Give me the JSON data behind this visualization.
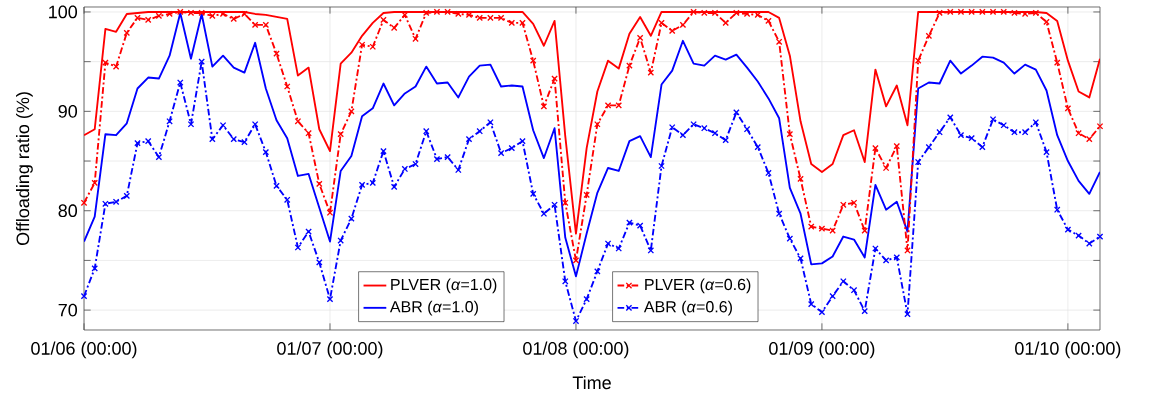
{
  "chart_data": {
    "type": "line",
    "xlabel": "Time",
    "ylabel": "Offloading ratio (%)",
    "categories": [
      "01/06 (00:00)",
      null,
      null,
      null,
      null,
      null,
      null,
      null,
      null,
      null,
      null,
      null,
      null,
      null,
      null,
      null,
      null,
      null,
      null,
      null,
      null,
      null,
      null,
      "01/07 (00:00)",
      null,
      null,
      null,
      null,
      null,
      null,
      null,
      null,
      null,
      null,
      null,
      null,
      null,
      null,
      null,
      null,
      null,
      null,
      null,
      null,
      null,
      null,
      "01/08 (00:00)",
      null,
      null,
      null,
      null,
      null,
      null,
      null,
      null,
      null,
      null,
      null,
      null,
      null,
      null,
      null,
      null,
      null,
      null,
      null,
      null,
      null,
      null,
      "01/09 (00:00)",
      null,
      null,
      null,
      null,
      null,
      null,
      null,
      null,
      null,
      null,
      null,
      null,
      null,
      null,
      null,
      null,
      null,
      null,
      null,
      null,
      null,
      null,
      "01/10 (00:00)",
      null,
      null,
      null
    ],
    "ylim": [
      68,
      100.5
    ],
    "yticks": [
      70,
      {
        "value": 75,
        "label": null
      },
      80,
      {
        "value": 85,
        "label": null
      },
      90,
      {
        "value": 95,
        "label": null
      },
      100
    ],
    "grid": true,
    "legend": "bottom",
    "series": [
      {
        "name": "PLVER (*α*=1.0)",
        "color": "#ff0000",
        "line_style": "solid",
        "marker": "none",
        "values": [
          87.6,
          88.2,
          98.3,
          98.0,
          99.8,
          99.9,
          100,
          100,
          100,
          100,
          100,
          100,
          100,
          100,
          100,
          100,
          99.8,
          99.7,
          99.5,
          99.3,
          93.6,
          94.4,
          88.2,
          86.0,
          94.8,
          95.9,
          97.6,
          98.9,
          99.9,
          100,
          100,
          100,
          100,
          100,
          100,
          100,
          100,
          100,
          100,
          100,
          100,
          100,
          98.8,
          96.6,
          99.1,
          87.5,
          77.7,
          86.3,
          92.0,
          95.1,
          94.3,
          97.8,
          99.5,
          97.6,
          100,
          100,
          100,
          100,
          100,
          100,
          100,
          100,
          100,
          100,
          100,
          99.4,
          95.6,
          89.0,
          84.7,
          83.9,
          84.7,
          87.6,
          88.1,
          84.9,
          94.2,
          90.5,
          92.6,
          88.6,
          100,
          100,
          100,
          100,
          100,
          100,
          100,
          100,
          100,
          100,
          100,
          100,
          99.9,
          99.1,
          95.1,
          92.0,
          91.4,
          95.3
        ]
      },
      {
        "name": "ABR (*α*=1.0)",
        "color": "#0000ff",
        "line_style": "solid",
        "marker": "none",
        "values": [
          76.9,
          79.4,
          87.7,
          87.6,
          88.8,
          92.3,
          93.4,
          93.3,
          95.6,
          99.9,
          95.3,
          99.8,
          94.5,
          95.6,
          94.4,
          93.9,
          96.9,
          92.3,
          89.1,
          87.3,
          83.5,
          83.7,
          80.3,
          76.9,
          84.0,
          85.5,
          89.5,
          90.3,
          92.8,
          90.6,
          91.8,
          92.5,
          94.5,
          92.8,
          92.9,
          91.4,
          93.5,
          94.6,
          94.7,
          92.5,
          92.6,
          92.5,
          88.1,
          85.3,
          88.3,
          77.3,
          73.4,
          77.7,
          81.8,
          84.3,
          84.0,
          87.0,
          87.5,
          85.4,
          92.7,
          94.1,
          97.1,
          94.8,
          94.6,
          95.6,
          95.2,
          95.7,
          94.4,
          93.0,
          91.3,
          89.3,
          82.3,
          79.7,
          74.6,
          74.7,
          75.4,
          77.4,
          77.1,
          75.3,
          82.6,
          80.1,
          80.9,
          77.9,
          92.3,
          92.9,
          92.8,
          95.1,
          93.8,
          94.6,
          95.5,
          95.4,
          94.9,
          93.8,
          94.7,
          94.2,
          92.1,
          87.6,
          85.0,
          83.0,
          81.7,
          83.9
        ]
      },
      {
        "name": "PLVER (*α*=0.6)",
        "color": "#ff0000",
        "line_style": "dashed",
        "marker": "cross",
        "values": [
          80.8,
          82.8,
          94.9,
          94.5,
          97.9,
          99.4,
          99.2,
          99.6,
          99.8,
          100,
          99.9,
          99.9,
          99.6,
          99.8,
          99.3,
          99.8,
          98.7,
          98.7,
          95.8,
          92.5,
          89.0,
          87.8,
          82.7,
          79.8,
          87.7,
          90.0,
          96.7,
          96.5,
          99.2,
          98.4,
          99.7,
          97.3,
          99.9,
          100,
          100,
          99.8,
          99.7,
          99.4,
          99.4,
          99.4,
          98.9,
          98.9,
          95.1,
          90.5,
          93.3,
          80.8,
          75.0,
          81.6,
          88.7,
          90.6,
          90.6,
          94.6,
          97.4,
          93.9,
          98.9,
          98.1,
          98.7,
          100,
          99.9,
          99.9,
          98.9,
          99.9,
          99.8,
          99.7,
          99.1,
          97.0,
          87.7,
          83.2,
          78.4,
          78.2,
          78.0,
          80.6,
          80.8,
          78.0,
          86.3,
          84.3,
          86.5,
          76.0,
          95.1,
          97.6,
          99.9,
          100,
          100,
          100,
          100,
          100,
          100,
          99.9,
          99.8,
          99.9,
          99.0,
          94.9,
          90.3,
          87.8,
          87.2,
          88.5
        ]
      },
      {
        "name": "ABR (*α*=0.6)",
        "color": "#0000ff",
        "line_style": "dashed",
        "marker": "cross",
        "values": [
          71.4,
          74.2,
          80.7,
          80.9,
          81.5,
          86.8,
          87.0,
          85.4,
          89.0,
          92.9,
          88.7,
          95.0,
          87.2,
          88.6,
          87.2,
          86.9,
          88.7,
          85.9,
          82.5,
          81.1,
          76.3,
          77.9,
          74.8,
          71.1,
          77.0,
          79.2,
          82.6,
          82.8,
          86.0,
          82.4,
          84.2,
          84.7,
          88.0,
          85.2,
          85.4,
          84.1,
          87.2,
          88.0,
          88.9,
          85.8,
          86.3,
          87.0,
          81.7,
          79.7,
          80.6,
          72.9,
          68.9,
          71.1,
          73.9,
          76.7,
          76.2,
          78.8,
          78.5,
          76.0,
          84.5,
          88.4,
          87.6,
          88.7,
          88.3,
          87.8,
          87.1,
          89.9,
          88.2,
          86.4,
          83.8,
          79.7,
          77.2,
          75.2,
          70.6,
          69.8,
          71.4,
          72.9,
          72.0,
          69.9,
          76.2,
          75.0,
          75.3,
          69.6,
          84.9,
          86.4,
          87.9,
          89.4,
          87.6,
          87.3,
          86.4,
          89.2,
          88.6,
          87.9,
          87.9,
          88.9,
          85.9,
          80.1,
          78.1,
          77.5,
          76.7,
          77.4
        ]
      }
    ]
  }
}
